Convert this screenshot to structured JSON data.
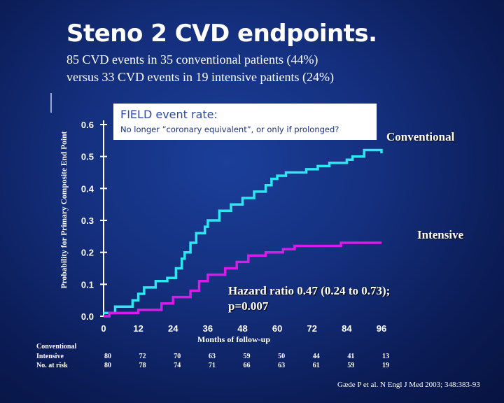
{
  "title": "Steno 2 CVD endpoints.",
  "subtitle_line1": "85 CVD events in 35 conventional patients (44%)",
  "subtitle_line2": "versus 33 CVD events in 19 intensive patients (24%)",
  "annotation": {
    "title": "FIELD event rate:",
    "text": "No longer ”coronary equivalent”, or only if prolonged?"
  },
  "hazard_line1": "Hazard ratio 0.47 (0.24 to 0.73);",
  "hazard_line2": "p=0.007",
  "risk_table": {
    "label_conventional": "Conventional",
    "label_intensive": "Intensive",
    "label_note": "No. at risk",
    "months": [
      0,
      12,
      24,
      36,
      48,
      60,
      72,
      84,
      96
    ],
    "conventional": [
      "80",
      "72",
      "70",
      "63",
      "59",
      "50",
      "44",
      "41",
      "13"
    ],
    "intensive": [
      "80",
      "78",
      "74",
      "71",
      "66",
      "63",
      "61",
      "59",
      "19"
    ]
  },
  "citation": "Gæde P et al. N Engl J Med 2003; 348:383-93",
  "colors": {
    "conventional": "#2ee6f0",
    "intensive": "#d21ee6",
    "background": "#142f7d"
  },
  "chart_data": {
    "type": "line",
    "title": "",
    "xlabel": "Months of follow-up",
    "ylabel": "Probability for Primary Composite End Point",
    "xlim": [
      0,
      96
    ],
    "ylim": [
      0,
      0.6
    ],
    "xticks": [
      "0",
      "12",
      "24",
      "36",
      "48",
      "60",
      "72",
      "84",
      "96"
    ],
    "yticks": [
      "0.0",
      "0.1",
      "0.2",
      "0.3",
      "0.4",
      "0.5",
      "0.6"
    ],
    "series": [
      {
        "name": "Conventional",
        "step": true,
        "points": [
          [
            0,
            0.01
          ],
          [
            4,
            0.01
          ],
          [
            4,
            0.03
          ],
          [
            10,
            0.03
          ],
          [
            10,
            0.05
          ],
          [
            12,
            0.05
          ],
          [
            12,
            0.07
          ],
          [
            14,
            0.07
          ],
          [
            14,
            0.09
          ],
          [
            18,
            0.09
          ],
          [
            18,
            0.11
          ],
          [
            22,
            0.11
          ],
          [
            22,
            0.12
          ],
          [
            25,
            0.12
          ],
          [
            25,
            0.15
          ],
          [
            27,
            0.15
          ],
          [
            27,
            0.18
          ],
          [
            28,
            0.18
          ],
          [
            28,
            0.2
          ],
          [
            30,
            0.2
          ],
          [
            30,
            0.23
          ],
          [
            32,
            0.23
          ],
          [
            32,
            0.26
          ],
          [
            35,
            0.26
          ],
          [
            35,
            0.28
          ],
          [
            36,
            0.28
          ],
          [
            36,
            0.3
          ],
          [
            40,
            0.3
          ],
          [
            40,
            0.33
          ],
          [
            44,
            0.33
          ],
          [
            44,
            0.35
          ],
          [
            48,
            0.35
          ],
          [
            48,
            0.37
          ],
          [
            52,
            0.37
          ],
          [
            52,
            0.39
          ],
          [
            56,
            0.39
          ],
          [
            56,
            0.41
          ],
          [
            58,
            0.41
          ],
          [
            58,
            0.43
          ],
          [
            60,
            0.43
          ],
          [
            60,
            0.44
          ],
          [
            63,
            0.44
          ],
          [
            63,
            0.45
          ],
          [
            70,
            0.45
          ],
          [
            70,
            0.46
          ],
          [
            74,
            0.46
          ],
          [
            74,
            0.47
          ],
          [
            78,
            0.47
          ],
          [
            78,
            0.48
          ],
          [
            84,
            0.48
          ],
          [
            84,
            0.49
          ],
          [
            86,
            0.49
          ],
          [
            86,
            0.5
          ],
          [
            90,
            0.5
          ],
          [
            90,
            0.52
          ],
          [
            96,
            0.52
          ],
          [
            96,
            0.51
          ]
        ]
      },
      {
        "name": "Intensive",
        "step": true,
        "points": [
          [
            0,
            0.0
          ],
          [
            2,
            0.0
          ],
          [
            2,
            0.01
          ],
          [
            12,
            0.01
          ],
          [
            12,
            0.02
          ],
          [
            20,
            0.02
          ],
          [
            20,
            0.04
          ],
          [
            24,
            0.04
          ],
          [
            24,
            0.06
          ],
          [
            30,
            0.06
          ],
          [
            30,
            0.08
          ],
          [
            33,
            0.08
          ],
          [
            33,
            0.11
          ],
          [
            36,
            0.11
          ],
          [
            36,
            0.13
          ],
          [
            42,
            0.13
          ],
          [
            42,
            0.15
          ],
          [
            46,
            0.15
          ],
          [
            46,
            0.17
          ],
          [
            50,
            0.17
          ],
          [
            50,
            0.19
          ],
          [
            56,
            0.19
          ],
          [
            56,
            0.2
          ],
          [
            62,
            0.2
          ],
          [
            62,
            0.21
          ],
          [
            66,
            0.21
          ],
          [
            66,
            0.22
          ],
          [
            82,
            0.22
          ],
          [
            82,
            0.23
          ],
          [
            96,
            0.23
          ]
        ]
      }
    ]
  }
}
